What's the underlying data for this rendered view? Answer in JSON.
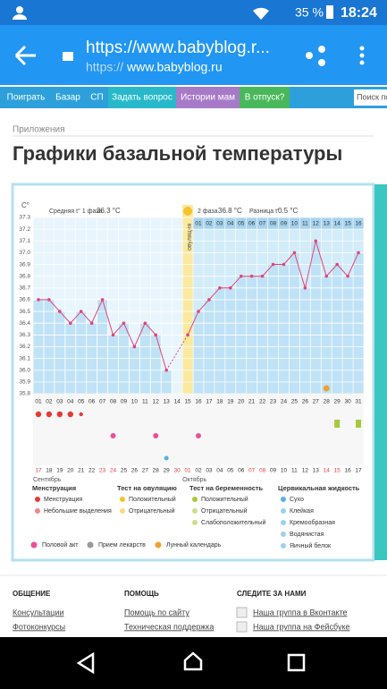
{
  "status": {
    "battery": "35 %",
    "time": "18:24"
  },
  "browser": {
    "url": "https://www.babyblog.r...",
    "url_scheme": "https://",
    "url_host": "www.babyblog.ru"
  },
  "nav": {
    "items": [
      "Поиграть",
      "Базар",
      "СП",
      "Задать вопрос",
      "Истории мам",
      "В отпуск?"
    ],
    "search": "Поиск по"
  },
  "breadcrumb": "Приложения",
  "title": "Графики базальной температуры",
  "chart": {
    "type": "line",
    "y_unit": "C°",
    "stats": [
      {
        "label": "Средняя t° 1 фаза",
        "value": "36.3 °C"
      },
      {
        "label": "2 фаза",
        "value": "36.8 °C"
      },
      {
        "label": "Разница t°",
        "value": "0.5 °C"
      }
    ],
    "ovulation_label": "овуляция",
    "ylim": [
      35.8,
      37.3
    ],
    "yticks": [
      35.8,
      35.9,
      {
        "value": 36.0,
        "label": "36.0"
      },
      36.1,
      36.2,
      36.3,
      36.4,
      36.5,
      36.6,
      36.7,
      36.8,
      36.9,
      {
        "value": 37.0,
        "label": "37.0"
      },
      37.1,
      37.2,
      37.3
    ],
    "days": [
      "01",
      "02",
      "03",
      "04",
      "05",
      "06",
      "07",
      "08",
      "09",
      "10",
      "11",
      "12",
      "13",
      "14",
      "15",
      "16",
      "17",
      "18",
      "19",
      "20",
      "21",
      "22",
      "23",
      "24",
      "25",
      "26",
      "27",
      "28",
      "29",
      "30",
      "31"
    ],
    "phase2_days": [
      "01",
      "02",
      "03",
      "04",
      "05",
      "06",
      "07",
      "08",
      "09",
      "10",
      "11",
      "12",
      "13",
      "14",
      "15",
      "16"
    ],
    "dates": [
      "17",
      "18",
      "19",
      "20",
      "21",
      "22",
      "23",
      "24",
      "25",
      "26",
      "27",
      "28",
      "29",
      "30",
      "01",
      "02",
      "03",
      "04",
      "05",
      "06",
      "07",
      "08",
      "09",
      "10",
      "11",
      "12",
      "13",
      "14",
      "15",
      "16",
      "17"
    ],
    "months": [
      "Сентябрь",
      "Октябрь"
    ],
    "temperatures": [
      36.6,
      36.6,
      36.5,
      36.4,
      36.5,
      36.4,
      36.6,
      36.3,
      36.4,
      36.2,
      36.4,
      36.3,
      36.0,
      null,
      36.3,
      36.5,
      36.6,
      36.7,
      36.7,
      36.8,
      36.8,
      36.8,
      36.9,
      36.9,
      37.0,
      36.7,
      37.1,
      36.8,
      36.9,
      36.8,
      37.0
    ],
    "line_color": "#e0457b",
    "bar_color": "#bfe2f6"
  },
  "legend": {
    "groups": [
      {
        "title": "Менструация",
        "items": [
          "Менструация",
          "Небольшие выделения"
        ]
      },
      {
        "title": "Тест на овуляцию",
        "items": [
          "Положительный",
          "Отрицательный"
        ]
      },
      {
        "title": "Тест на беременность",
        "items": [
          "Положительный",
          "Отрицательный",
          "Слабоположительный"
        ]
      },
      {
        "title": "Цервикальная жидкость",
        "items": [
          "Сухо",
          "Клейкая",
          "Кремообразная",
          "Водянистая",
          "Яичный белок"
        ]
      }
    ],
    "extra": [
      "Половой акт",
      "Прием лекарств",
      "Лунный календарь"
    ]
  },
  "footer": [
    {
      "title": "ОБЩЕНИЕ",
      "links": [
        "Консультации",
        "Фотоконкурсы"
      ]
    },
    {
      "title": "ПОМОЩЬ",
      "links": [
        "Помощь по сайту",
        "Техническая поддержка"
      ]
    },
    {
      "title": "СЛЕДИТЕ ЗА НАМИ",
      "links": [
        "Наша группа в Вконтакте",
        "Наша группа на Фейсбуке"
      ]
    }
  ]
}
